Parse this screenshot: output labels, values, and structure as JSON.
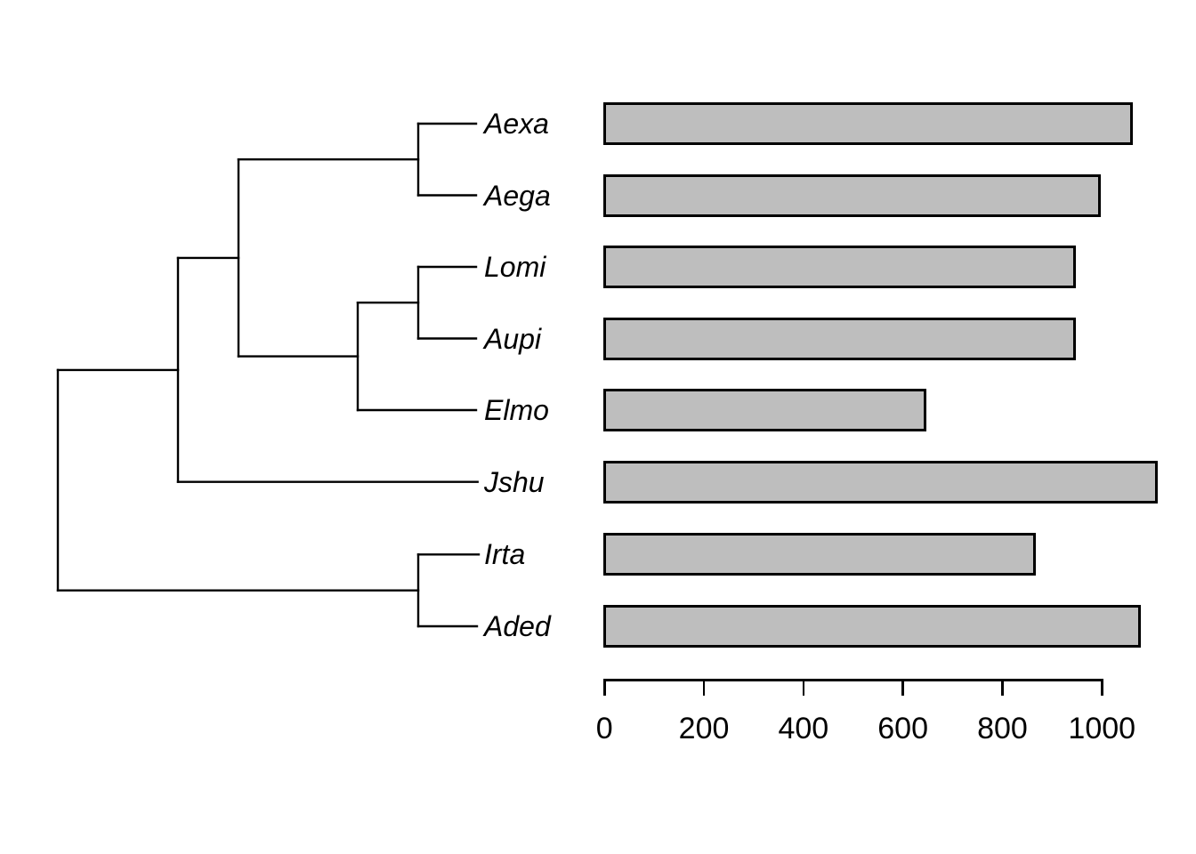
{
  "figure": {
    "kind": "phylogenetic-tree-with-aligned-barplot",
    "background_color": "#ffffff",
    "line_color": "#000000"
  },
  "tree": {
    "tip_labels": [
      "Aexa",
      "Aega",
      "Lomi",
      "Aupi",
      "Elmo",
      "Jshu",
      "Irta",
      "Aded"
    ]
  },
  "chart_data": {
    "type": "bar",
    "orientation": "horizontal",
    "categories": [
      "Aexa",
      "Aega",
      "Lomi",
      "Aupi",
      "Elmo",
      "Jshu",
      "Irta",
      "Aded"
    ],
    "values": [
      1065,
      1000,
      950,
      950,
      650,
      1115,
      870,
      1080
    ],
    "x_ticks": [
      0,
      200,
      400,
      600,
      800,
      1000
    ],
    "xlim": [
      0,
      1000
    ],
    "title": "",
    "xlabel": "",
    "ylabel": "",
    "grid": "off",
    "legend": "none",
    "bar_fill": "#BEBEBE",
    "bar_border": "#000000"
  }
}
